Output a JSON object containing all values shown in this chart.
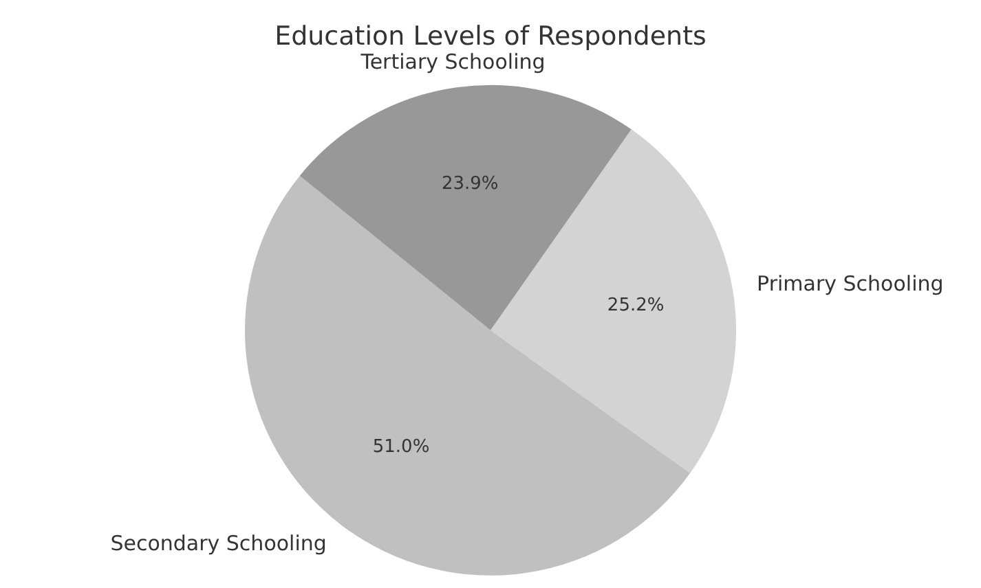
{
  "chart_data": {
    "type": "pie",
    "title": "Education Levels of Respondents",
    "categories": [
      "Primary Schooling",
      "Secondary Schooling",
      "Tertiary Schooling"
    ],
    "values": [
      25.2,
      51.0,
      23.9
    ],
    "colors": [
      "#d3d3d3",
      "#c0c0c0",
      "#989898"
    ],
    "value_labels": [
      "25.2%",
      "51.0%",
      "23.9%"
    ],
    "legend": false
  }
}
